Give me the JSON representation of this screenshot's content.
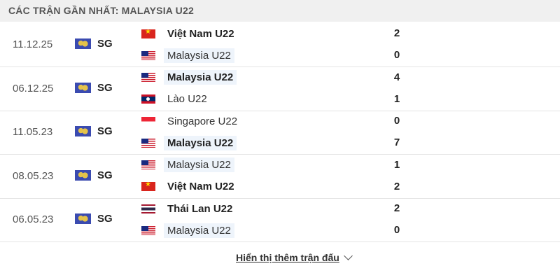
{
  "header": {
    "title": "CÁC TRẬN GẦN NHẤT: MALAYSIA U22"
  },
  "matches": [
    {
      "date": "11.12.25",
      "competition": "SG",
      "home": {
        "name": "Việt Nam U22",
        "flag": "vn",
        "score": "2",
        "bold": true
      },
      "away": {
        "name": "Malaysia U22",
        "flag": "my",
        "score": "0",
        "bold": false
      }
    },
    {
      "date": "06.12.25",
      "competition": "SG",
      "home": {
        "name": "Malaysia U22",
        "flag": "my",
        "score": "4",
        "bold": true
      },
      "away": {
        "name": "Lào U22",
        "flag": "la",
        "score": "1",
        "bold": false
      }
    },
    {
      "date": "11.05.23",
      "competition": "SG",
      "home": {
        "name": "Singapore U22",
        "flag": "sg",
        "score": "0",
        "bold": false
      },
      "away": {
        "name": "Malaysia U22",
        "flag": "my",
        "score": "7",
        "bold": true
      }
    },
    {
      "date": "08.05.23",
      "competition": "SG",
      "home": {
        "name": "Malaysia U22",
        "flag": "my",
        "score": "1",
        "bold": false
      },
      "away": {
        "name": "Việt Nam U22",
        "flag": "vn",
        "score": "2",
        "bold": true
      }
    },
    {
      "date": "06.05.23",
      "competition": "SG",
      "home": {
        "name": "Thái Lan U22",
        "flag": "th",
        "score": "2",
        "bold": true
      },
      "away": {
        "name": "Malaysia U22",
        "flag": "my",
        "score": "0",
        "bold": false
      }
    }
  ],
  "footer": {
    "more_label": "Hiển thị thêm trận đấu"
  }
}
